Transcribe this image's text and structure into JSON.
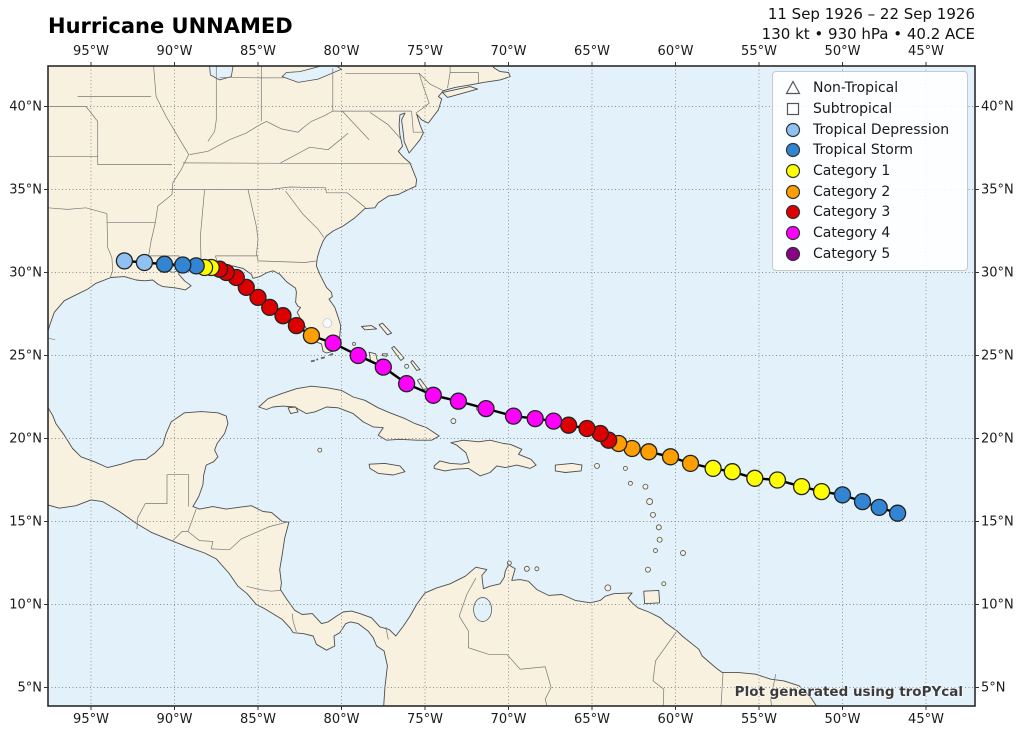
{
  "title": "Hurricane UNNAMED",
  "header": {
    "line1": "11 Sep 1926 – 22 Sep 1926",
    "line2": "130 kt • 930 hPa • 40.2 ACE"
  },
  "attribution": "Plot generated using troPYcal",
  "axes": {
    "lon_ticks": [
      {
        "lon": -95,
        "label": "95°W"
      },
      {
        "lon": -90,
        "label": "90°W"
      },
      {
        "lon": -85,
        "label": "85°W"
      },
      {
        "lon": -80,
        "label": "80°W"
      },
      {
        "lon": -75,
        "label": "75°W"
      },
      {
        "lon": -70,
        "label": "70°W"
      },
      {
        "lon": -65,
        "label": "65°W"
      },
      {
        "lon": -60,
        "label": "60°W"
      },
      {
        "lon": -55,
        "label": "55°W"
      },
      {
        "lon": -50,
        "label": "50°W"
      },
      {
        "lon": -45,
        "label": "45°W"
      }
    ],
    "lat_ticks": [
      {
        "lat": 40,
        "label": "40°N"
      },
      {
        "lat": 35,
        "label": "35°N"
      },
      {
        "lat": 30,
        "label": "30°N"
      },
      {
        "lat": 25,
        "label": "25°N"
      },
      {
        "lat": 20,
        "label": "20°N"
      },
      {
        "lat": 15,
        "label": "15°N"
      },
      {
        "lat": 10,
        "label": "10°N"
      },
      {
        "lat": 5,
        "label": "5°N"
      }
    ]
  },
  "legend": {
    "items": [
      {
        "label": "Non-Tropical",
        "marker": "triangle",
        "fill": "#ffffff",
        "edge": "#555555"
      },
      {
        "label": "Subtropical",
        "marker": "square",
        "fill": "#ffffff",
        "edge": "#555555"
      },
      {
        "label": "Tropical Depression",
        "marker": "circle",
        "fill": "#8FC2F2",
        "edge": "#333333"
      },
      {
        "label": "Tropical Storm",
        "marker": "circle",
        "fill": "#3185D3",
        "edge": "#333333"
      },
      {
        "label": "Category 1",
        "marker": "circle",
        "fill": "#FFFF00",
        "edge": "#333333"
      },
      {
        "label": "Category 2",
        "marker": "circle",
        "fill": "#FF9E00",
        "edge": "#333333"
      },
      {
        "label": "Category 3",
        "marker": "circle",
        "fill": "#DD0000",
        "edge": "#333333"
      },
      {
        "label": "Category 4",
        "marker": "circle",
        "fill": "#FF00FC",
        "edge": "#333333"
      },
      {
        "label": "Category 5",
        "marker": "circle",
        "fill": "#8B0088",
        "edge": "#333333"
      }
    ]
  },
  "chart_data": {
    "type": "hurricane_track_map",
    "storm": {
      "name": "Hurricane UNNAMED",
      "date_range": "11 Sep 1926 – 22 Sep 1926",
      "peak_wind_kt": 130,
      "min_pressure_hpa": 930,
      "ace": 40.2
    },
    "map_extent": {
      "lon_min": -97.6,
      "lon_max": -42.1,
      "lat_min": 3.9,
      "lat_max": 42.4
    },
    "category_colors": {
      "TD": "#8FC2F2",
      "TS": "#3185D3",
      "C1": "#FFFF00",
      "C2": "#FF9E00",
      "C3": "#DD0000",
      "C4": "#FF00FC",
      "C5": "#8B0088"
    },
    "track": [
      [
        -46.7,
        15.5,
        "TS"
      ],
      [
        -47.8,
        15.85,
        "TS"
      ],
      [
        -48.8,
        16.2,
        "TS"
      ],
      [
        -50.0,
        16.6,
        "TS"
      ],
      [
        -51.25,
        16.8,
        "C1"
      ],
      [
        -52.45,
        17.1,
        "C1"
      ],
      [
        -53.9,
        17.5,
        "C1"
      ],
      [
        -55.25,
        17.6,
        "C1"
      ],
      [
        -56.6,
        18.0,
        "C1"
      ],
      [
        -57.75,
        18.2,
        "C1"
      ],
      [
        -59.1,
        18.5,
        "C2"
      ],
      [
        -60.3,
        18.9,
        "C2"
      ],
      [
        -61.6,
        19.2,
        "C2"
      ],
      [
        -62.6,
        19.4,
        "C2"
      ],
      [
        -63.4,
        19.7,
        "C2"
      ],
      [
        -64.0,
        19.9,
        "C3"
      ],
      [
        -64.5,
        20.3,
        "C3"
      ],
      [
        -65.3,
        20.6,
        "C3"
      ],
      [
        -66.4,
        20.8,
        "C3"
      ],
      [
        -67.3,
        21.05,
        "C4"
      ],
      [
        -68.4,
        21.2,
        "C4"
      ],
      [
        -69.7,
        21.35,
        "C4"
      ],
      [
        -71.35,
        21.8,
        "C4"
      ],
      [
        -73.0,
        22.25,
        "C4"
      ],
      [
        -74.5,
        22.6,
        "C4"
      ],
      [
        -76.1,
        23.3,
        "C4"
      ],
      [
        -77.5,
        24.3,
        "C4"
      ],
      [
        -79.0,
        25.0,
        "C4"
      ],
      [
        -80.5,
        25.75,
        "C4"
      ],
      [
        -81.8,
        26.2,
        "C2"
      ],
      [
        -82.7,
        26.8,
        "C3"
      ],
      [
        -83.5,
        27.4,
        "C3"
      ],
      [
        -84.3,
        27.9,
        "C3"
      ],
      [
        -85.0,
        28.5,
        "C3"
      ],
      [
        -85.7,
        29.1,
        "C3"
      ],
      [
        -86.3,
        29.7,
        "C3"
      ],
      [
        -86.9,
        30.0,
        "C3"
      ],
      [
        -87.3,
        30.2,
        "C3"
      ],
      [
        -87.8,
        30.3,
        "C1"
      ],
      [
        -88.2,
        30.3,
        "C1"
      ],
      [
        -88.7,
        30.4,
        "TS"
      ],
      [
        -89.5,
        30.45,
        "TS"
      ],
      [
        -90.6,
        30.5,
        "TS"
      ],
      [
        -91.8,
        30.6,
        "TD"
      ],
      [
        -93.0,
        30.7,
        "TD"
      ]
    ]
  },
  "style_colors": {
    "ocean": "#e3f2fa",
    "land": "#f9f1df",
    "coast": "#4d4d4d",
    "border": "#777777",
    "grid": "#8c8c8c",
    "frame": "#2b2b2b"
  }
}
